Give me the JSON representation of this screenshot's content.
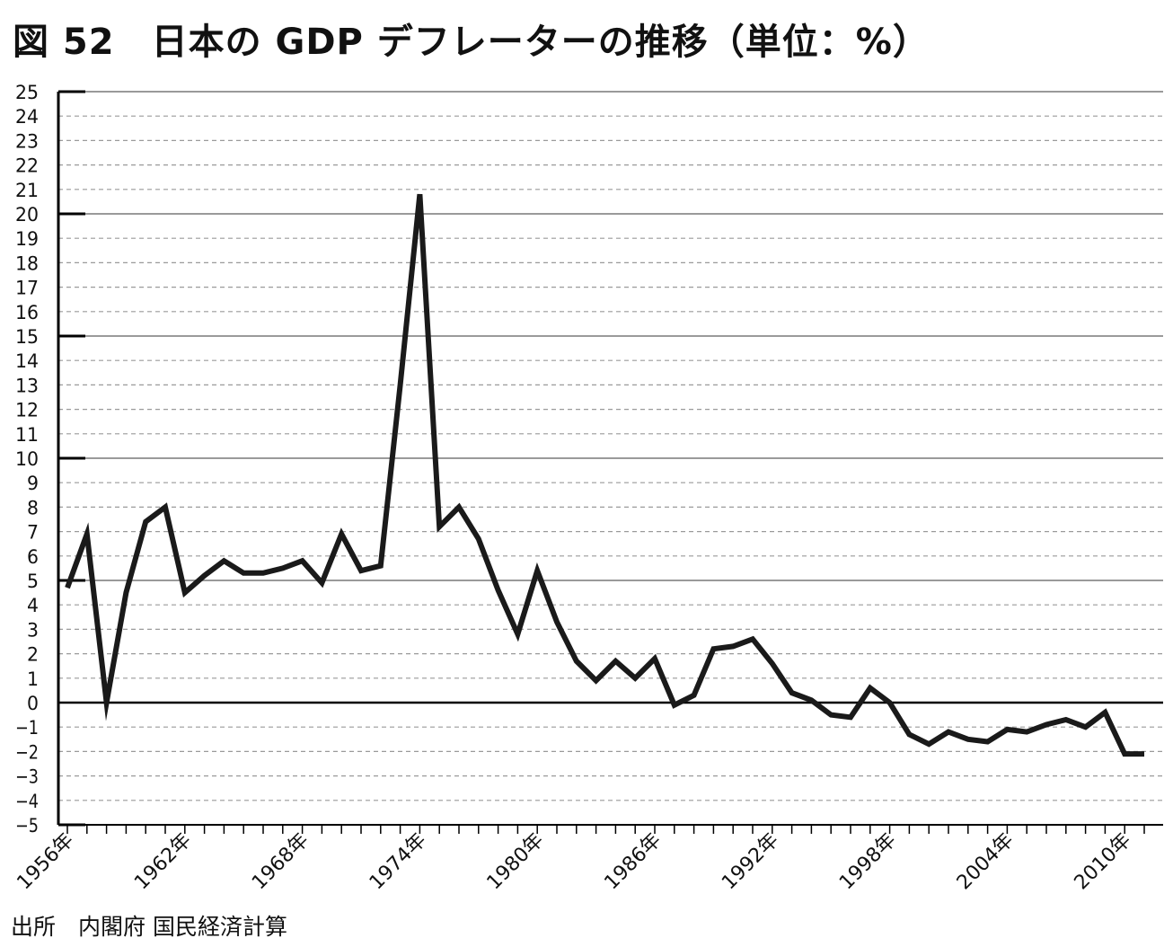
{
  "title": "図 52　日本の GDP デフレーターの推移（単位：%）",
  "source": "出所　内閣府 国民経済計算",
  "chart_data": {
    "type": "line",
    "title": "図 52　日本の GDP デフレーターの推移（単位：%）",
    "xlabel": "",
    "ylabel": "",
    "ylim": [
      -5,
      25
    ],
    "yticks": [
      25,
      24,
      23,
      22,
      21,
      20,
      19,
      18,
      17,
      16,
      15,
      14,
      13,
      12,
      11,
      10,
      9,
      8,
      7,
      6,
      5,
      4,
      3,
      2,
      1,
      0,
      -1,
      -2,
      -3,
      -4,
      -5
    ],
    "xtick_labels": [
      "1956年",
      "1962年",
      "1968年",
      "1974年",
      "1980年",
      "1986年",
      "1992年",
      "1998年",
      "2004年",
      "2010年"
    ],
    "grid": "horizontal: solid every 5, dashed every 1",
    "series": [
      {
        "x": [
          1956,
          1957,
          1958,
          1959,
          1960,
          1961,
          1962,
          1963,
          1964,
          1965,
          1966,
          1967,
          1968,
          1969,
          1970,
          1971,
          1972,
          1973,
          1974,
          1975,
          1976,
          1977,
          1978,
          1979,
          1980,
          1981,
          1982,
          1983,
          1984,
          1985,
          1986,
          1987,
          1988,
          1989,
          1990,
          1991,
          1992,
          1993,
          1994,
          1995,
          1996,
          1997,
          1998,
          1999,
          2000,
          2001,
          2002,
          2003,
          2004,
          2005,
          2006,
          2007,
          2008,
          2009,
          2010,
          2011
        ],
        "values": [
          4.7,
          6.9,
          0.0,
          4.5,
          7.4,
          8.0,
          4.5,
          5.2,
          5.8,
          5.3,
          5.3,
          5.5,
          5.8,
          4.9,
          6.9,
          5.4,
          5.6,
          13.0,
          20.8,
          7.2,
          8.0,
          6.7,
          4.6,
          2.8,
          5.4,
          3.3,
          1.7,
          0.9,
          1.7,
          1.0,
          1.8,
          -0.1,
          0.3,
          2.2,
          2.3,
          2.6,
          1.6,
          0.4,
          0.1,
          -0.5,
          -0.6,
          0.6,
          0.0,
          -1.3,
          -1.7,
          -1.2,
          -1.5,
          -1.6,
          -1.1,
          -1.2,
          -0.9,
          -0.7,
          -1.0,
          -0.4,
          -2.1,
          -2.1
        ]
      }
    ]
  }
}
